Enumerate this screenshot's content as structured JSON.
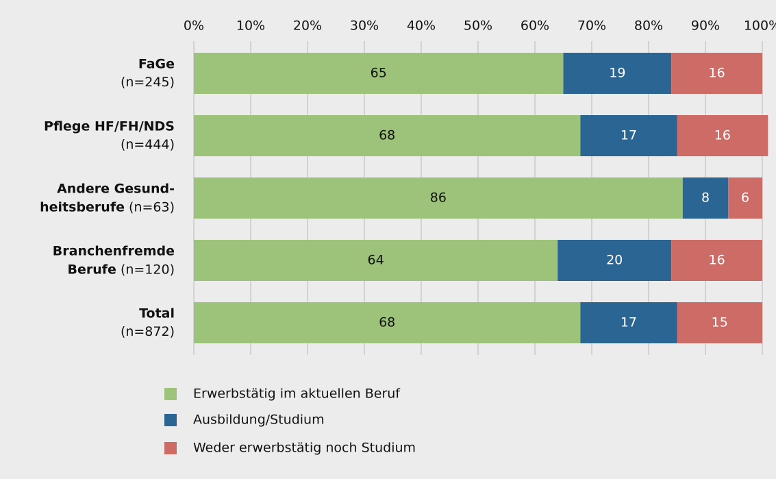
{
  "chart_data": {
    "type": "stacked-bar-horizontal",
    "categories": [
      {
        "name": [
          "FaGe"
        ],
        "n": "(n=245)"
      },
      {
        "name": [
          "Pflege HF/FH/NDS"
        ],
        "n": "(n=444)"
      },
      {
        "name": [
          "Andere Gesund-",
          "heitsberufe"
        ],
        "n": "(n=63)"
      },
      {
        "name": [
          "Branchenfremde",
          "Berufe"
        ],
        "n": "(n=120)"
      },
      {
        "name": [
          "Total"
        ],
        "n": "(n=872)"
      }
    ],
    "series": [
      {
        "name": "Erwerbstätig im aktuellen Beruf",
        "color": "#9dc37a",
        "label_color": "#111111",
        "values": [
          65,
          68,
          86,
          64,
          68
        ]
      },
      {
        "name": "Ausbildung/Studium",
        "color": "#2b6593",
        "label_color": "#ffffff",
        "values": [
          19,
          17,
          8,
          20,
          17
        ]
      },
      {
        "name": "Weder erwerbstätig noch Studium",
        "color": "#cd6b66",
        "label_color": "#ffffff",
        "values": [
          16,
          16,
          6,
          16,
          15
        ]
      }
    ],
    "xlim": [
      0,
      100
    ],
    "xticks": [
      {
        "value": 0,
        "label": "0%"
      },
      {
        "value": 10,
        "label": "10%"
      },
      {
        "value": 20,
        "label": "20%"
      },
      {
        "value": 30,
        "label": "30%"
      },
      {
        "value": 40,
        "label": "40%"
      },
      {
        "value": 50,
        "label": "50%"
      },
      {
        "value": 60,
        "label": "60%"
      },
      {
        "value": 70,
        "label": "70%"
      },
      {
        "value": 80,
        "label": "80%"
      },
      {
        "value": 90,
        "label": "90%"
      },
      {
        "value": 100,
        "label": "100%"
      }
    ],
    "grid": true,
    "legend": "bottom"
  }
}
